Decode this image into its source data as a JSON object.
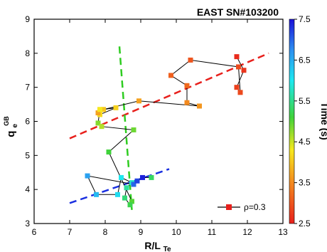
{
  "chart_data": {
    "type": "scatter",
    "title": "EAST SN#103200",
    "xlabel_main": "R/L",
    "xlabel_sub": "Te",
    "ylabel_main": "q",
    "ylabel_sub": "e",
    "ylabel_sup": "GB",
    "xlim": [
      6,
      13
    ],
    "ylim": [
      3,
      9
    ],
    "x_ticks": [
      "6",
      "7",
      "8",
      "9",
      "10",
      "11",
      "12",
      "13"
    ],
    "y_ticks": [
      "3",
      "4",
      "5",
      "6",
      "7",
      "8",
      "9"
    ],
    "colorbar": {
      "label": "Time (s)",
      "range": [
        2.5,
        7.5
      ],
      "ticks": [
        "2.5",
        "3.5",
        "4.5",
        "5.5",
        "6.5",
        "7.5"
      ]
    },
    "legend": {
      "label": "ρ=0.3",
      "position": "bottom-right"
    },
    "series": [
      {
        "marker": "square",
        "connected": true,
        "points": [
          {
            "x": 11.7,
            "y": 7.9,
            "t": 2.6
          },
          {
            "x": 11.9,
            "y": 7.5,
            "t": 2.7
          },
          {
            "x": 11.7,
            "y": 7.0,
            "t": 2.8
          },
          {
            "x": 11.8,
            "y": 6.85,
            "t": 2.9
          },
          {
            "x": 11.75,
            "y": 7.6,
            "t": 2.9
          },
          {
            "x": 10.4,
            "y": 7.8,
            "t": 3.0
          },
          {
            "x": 9.85,
            "y": 7.35,
            "t": 3.1
          },
          {
            "x": 10.3,
            "y": 7.05,
            "t": 3.2
          },
          {
            "x": 10.3,
            "y": 6.55,
            "t": 3.5
          },
          {
            "x": 10.65,
            "y": 6.45,
            "t": 3.6
          },
          {
            "x": 8.95,
            "y": 6.6,
            "t": 3.7
          },
          {
            "x": 7.95,
            "y": 6.35,
            "t": 4.0
          },
          {
            "x": 8.3,
            "y": 6.4,
            "t": 4.1
          },
          {
            "x": 7.85,
            "y": 6.2,
            "t": 4.2
          },
          {
            "x": 7.8,
            "y": 6.25,
            "t": 3.7
          },
          {
            "x": 7.85,
            "y": 6.35,
            "t": 4.3
          },
          {
            "x": 7.8,
            "y": 5.95,
            "t": 4.8
          },
          {
            "x": 7.9,
            "y": 5.85,
            "t": 4.6
          },
          {
            "x": 8.8,
            "y": 5.75,
            "t": 4.9
          },
          {
            "x": 8.1,
            "y": 5.1,
            "t": 5.1
          },
          {
            "x": 8.75,
            "y": 3.65,
            "t": 5.0
          },
          {
            "x": 8.7,
            "y": 3.55,
            "t": 5.2
          },
          {
            "x": 8.55,
            "y": 3.75,
            "t": 5.4
          },
          {
            "x": 8.6,
            "y": 4.05,
            "t": 5.6
          },
          {
            "x": 8.75,
            "y": 4.2,
            "t": 5.8
          },
          {
            "x": 8.45,
            "y": 4.35,
            "t": 6.0
          },
          {
            "x": 8.35,
            "y": 3.85,
            "t": 6.1
          },
          {
            "x": 7.75,
            "y": 3.85,
            "t": 6.4
          },
          {
            "x": 7.5,
            "y": 4.4,
            "t": 6.6
          },
          {
            "x": 8.8,
            "y": 4.15,
            "t": 7.0
          },
          {
            "x": 8.9,
            "y": 4.25,
            "t": 7.2
          },
          {
            "x": 9.05,
            "y": 4.35,
            "t": 7.4
          },
          {
            "x": 9.3,
            "y": 4.35,
            "t": 5.3
          }
        ]
      }
    ],
    "fit_lines": [
      {
        "color": "#e8201c",
        "x": [
          7.0,
          12.6
        ],
        "y": [
          5.5,
          8.0
        ]
      },
      {
        "color": "#1a2fe0",
        "x": [
          7.0,
          9.8
        ],
        "y": [
          3.6,
          4.6
        ]
      },
      {
        "color": "#2ecc20",
        "x": [
          8.4,
          8.75
        ],
        "y": [
          8.2,
          3.4
        ]
      }
    ]
  }
}
